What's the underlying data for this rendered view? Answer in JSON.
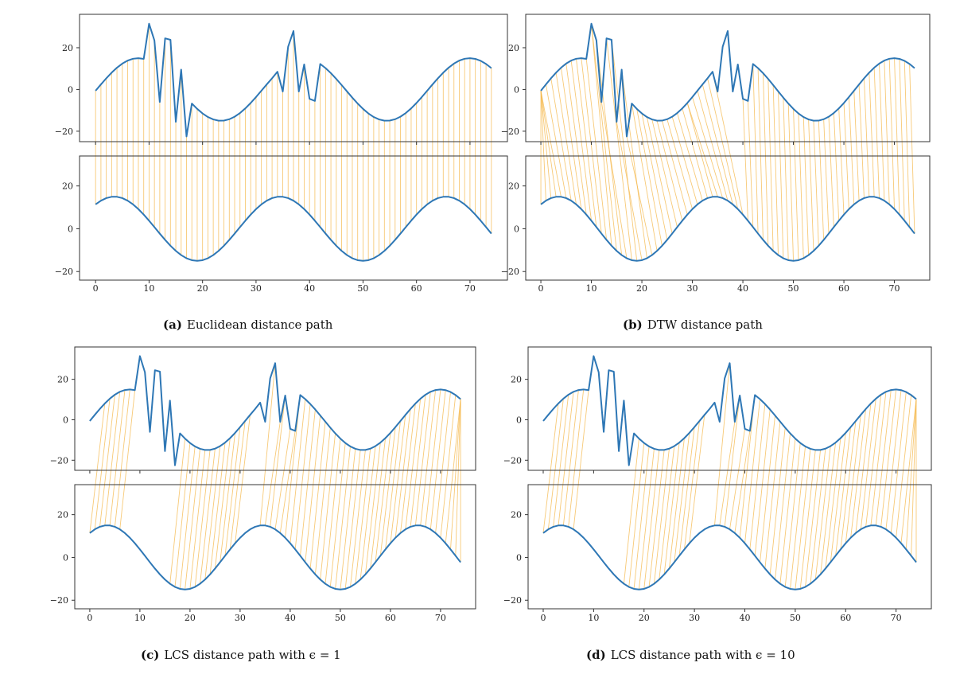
{
  "figure": {
    "panels": [
      {
        "label": "(a)",
        "caption": "Euclidean distance path"
      },
      {
        "label": "(b)",
        "caption": "DTW distance path"
      },
      {
        "label": "(c)",
        "caption": "LCS distance path with ϵ = 1"
      },
      {
        "label": "(d)",
        "caption": "LCS distance path with ϵ = 10"
      }
    ]
  },
  "chart_data": [
    {
      "type": "line",
      "panel": "a",
      "method": "Euclidean",
      "xlim": [
        -3,
        77
      ],
      "top_ylim": [
        -25,
        36
      ],
      "bottom_ylim": [
        -24,
        34
      ],
      "top_yticks": [
        -20,
        0,
        20
      ],
      "bottom_yticks": [
        -20,
        0,
        20
      ],
      "xticks": [
        0,
        10,
        20,
        30,
        40,
        50,
        60,
        70
      ],
      "x_count": 75,
      "noise_x": [
        10,
        11,
        12,
        13,
        14,
        15,
        16,
        17,
        34,
        35,
        36,
        37,
        38,
        39,
        40,
        41
      ],
      "noise_y": [
        31.5,
        23.5,
        -6,
        24.5,
        23.8,
        -15.5,
        9.5,
        -22.5,
        8.5,
        -1,
        20.5,
        28,
        -1,
        12,
        -4.5,
        -5.5
      ],
      "series": [
        {
          "role": "top",
          "color": "#2e77b5"
        },
        {
          "role": "bottom",
          "color": "#2e77b5"
        }
      ],
      "alignment_color": "#f5b84a",
      "alignment": "identity"
    },
    {
      "type": "line",
      "panel": "b",
      "method": "DTW",
      "xlim": [
        -3,
        77
      ],
      "top_ylim": [
        -25,
        36
      ],
      "bottom_ylim": [
        -24,
        34
      ],
      "top_yticks": [
        -20,
        0,
        20
      ],
      "bottom_yticks": [
        -20,
        0,
        20
      ],
      "xticks": [
        0,
        10,
        20,
        30,
        40,
        50,
        60,
        70
      ],
      "x_count": 75,
      "noise_x": [
        10,
        11,
        12,
        13,
        14,
        15,
        16,
        17,
        34,
        35,
        36,
        37,
        38,
        39,
        40,
        41
      ],
      "noise_y": [
        31.5,
        23.5,
        -6,
        24.5,
        23.8,
        -15.5,
        9.5,
        -22.5,
        8.5,
        -1,
        20.5,
        28,
        -1,
        12,
        -4.5,
        -5.5
      ],
      "series": [
        {
          "role": "top",
          "color": "#2e77b5"
        },
        {
          "role": "bottom",
          "color": "#2e77b5"
        }
      ],
      "alignment_color": "#f5b84a",
      "alignment": "dtw"
    },
    {
      "type": "line",
      "panel": "c",
      "method": "LCS",
      "epsilon": 1,
      "xlim": [
        -3,
        77
      ],
      "top_ylim": [
        -25,
        36
      ],
      "bottom_ylim": [
        -24,
        34
      ],
      "top_yticks": [
        -20,
        0,
        20
      ],
      "bottom_yticks": [
        -20,
        0,
        20
      ],
      "xticks": [
        0,
        10,
        20,
        30,
        40,
        50,
        60,
        70
      ],
      "x_count": 75,
      "noise_x": [
        10,
        11,
        12,
        13,
        14,
        15,
        16,
        17,
        34,
        35,
        36,
        37,
        38,
        39,
        40,
        41
      ],
      "noise_y": [
        31.5,
        23.5,
        -6,
        24.5,
        23.8,
        -15.5,
        9.5,
        -22.5,
        8.5,
        -1,
        20.5,
        28,
        -1,
        12,
        -4.5,
        -5.5
      ],
      "series": [
        {
          "role": "top",
          "color": "#2e77b5"
        },
        {
          "role": "bottom",
          "color": "#2e77b5"
        }
      ],
      "alignment_color": "#f5b84a",
      "alignment": "lcs"
    },
    {
      "type": "line",
      "panel": "d",
      "method": "LCS",
      "epsilon": 10,
      "xlim": [
        -3,
        77
      ],
      "top_ylim": [
        -25,
        36
      ],
      "bottom_ylim": [
        -24,
        34
      ],
      "top_yticks": [
        -20,
        0,
        20
      ],
      "bottom_yticks": [
        -20,
        0,
        20
      ],
      "xticks": [
        0,
        10,
        20,
        30,
        40,
        50,
        60,
        70
      ],
      "x_count": 75,
      "noise_x": [
        10,
        11,
        12,
        13,
        14,
        15,
        16,
        17,
        34,
        35,
        36,
        37,
        38,
        39,
        40,
        41
      ],
      "noise_y": [
        31.5,
        23.5,
        -6,
        24.5,
        23.8,
        -15.5,
        9.5,
        -22.5,
        8.5,
        -1,
        20.5,
        28,
        -1,
        12,
        -4.5,
        -5.5
      ],
      "series": [
        {
          "role": "top",
          "color": "#2e77b5"
        },
        {
          "role": "bottom",
          "color": "#2e77b5"
        }
      ],
      "alignment_color": "#f5b84a",
      "alignment": "lcs"
    }
  ]
}
